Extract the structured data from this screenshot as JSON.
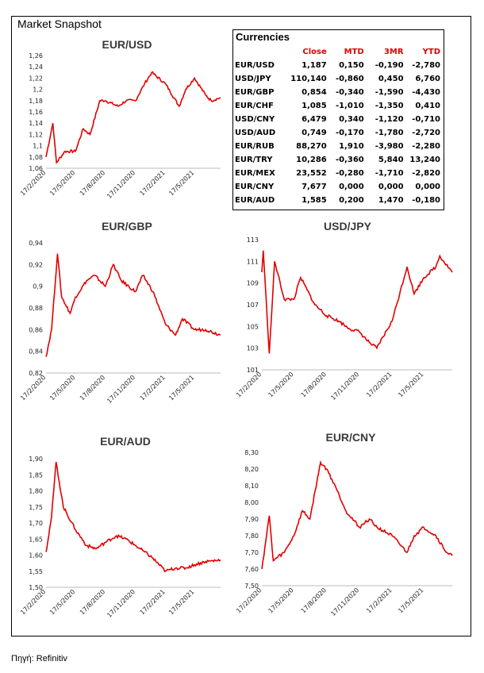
{
  "page_title": "Market Snapshot",
  "source": "Πηγή: Refinitiv",
  "currencies": {
    "title": "Currencies",
    "columns": [
      "Close",
      "MTD",
      "3MR",
      "YTD"
    ],
    "rows": [
      {
        "pair": "EUR/USD",
        "close": "1,187",
        "mtd": "0,150",
        "r3m": "-0,190",
        "ytd": "-2,780"
      },
      {
        "pair": "USD/JPY",
        "close": "110,140",
        "mtd": "-0,860",
        "r3m": "0,450",
        "ytd": "6,760"
      },
      {
        "pair": "EUR/GBP",
        "close": "0,854",
        "mtd": "-0,340",
        "r3m": "-1,590",
        "ytd": "-4,430"
      },
      {
        "pair": "EUR/CHF",
        "close": "1,085",
        "mtd": "-1,010",
        "r3m": "-1,350",
        "ytd": "0,410"
      },
      {
        "pair": "USD/CNY",
        "close": "6,479",
        "mtd": "0,340",
        "r3m": "-1,120",
        "ytd": "-0,710"
      },
      {
        "pair": "USD/AUD",
        "close": "0,749",
        "mtd": "-0,170",
        "r3m": "-1,780",
        "ytd": "-2,720"
      },
      {
        "pair": "EUR/RUB",
        "close": "88,270",
        "mtd": "1,910",
        "r3m": "-3,980",
        "ytd": "-2,280"
      },
      {
        "pair": "EUR/TRY",
        "close": "10,286",
        "mtd": "-0,360",
        "r3m": "5,840",
        "ytd": "13,240"
      },
      {
        "pair": "EUR/MEX",
        "close": "23,552",
        "mtd": "-0,280",
        "r3m": "-1,710",
        "ytd": "-2,820"
      },
      {
        "pair": "EUR/CNY",
        "close": "7,677",
        "mtd": "0,000",
        "r3m": "0,000",
        "ytd": "0,000"
      },
      {
        "pair": "EUR/AUD",
        "close": "1,585",
        "mtd": "0,200",
        "r3m": "1,470",
        "ytd": "-0,180"
      }
    ]
  },
  "chart_data": [
    {
      "id": "eurusd",
      "type": "line",
      "title": "EUR/USD",
      "color": "#e00000",
      "x_ticks": [
        "17/2/2020",
        "17/5/2020",
        "17/8/2020",
        "17/11/2020",
        "17/2/2021",
        "17/5/2021"
      ],
      "y_ticks": [
        "1,06",
        "1,08",
        "1,1",
        "1,12",
        "1,14",
        "1,16",
        "1,18",
        "1,2",
        "1,22",
        "1,24",
        "1,26"
      ],
      "ylim": [
        1.06,
        1.26
      ],
      "x": [
        "2020-02-17",
        "2020-03-09",
        "2020-03-20",
        "2020-04-15",
        "2020-05-17",
        "2020-06-10",
        "2020-07-01",
        "2020-07-31",
        "2020-08-17",
        "2020-09-25",
        "2020-10-20",
        "2020-11-17",
        "2020-12-15",
        "2021-01-06",
        "2021-02-17",
        "2021-03-31",
        "2021-04-20",
        "2021-05-17",
        "2021-06-20",
        "2021-07-07",
        "2021-08-05"
      ],
      "y": [
        1.08,
        1.14,
        1.07,
        1.09,
        1.09,
        1.13,
        1.12,
        1.18,
        1.18,
        1.17,
        1.18,
        1.18,
        1.21,
        1.23,
        1.21,
        1.17,
        1.2,
        1.22,
        1.19,
        1.18,
        1.185
      ]
    },
    {
      "id": "eurgbp",
      "type": "line",
      "title": "EUR/GBP",
      "color": "#e00000",
      "x_ticks": [
        "17/2/2020",
        "17/5/2020",
        "17/8/2020",
        "17/11/2020",
        "17/2/2021",
        "17/5/2021"
      ],
      "y_ticks": [
        "0,82",
        "0,84",
        "0,86",
        "0,88",
        "0,9",
        "0,92",
        "0,94"
      ],
      "ylim": [
        0.82,
        0.94
      ],
      "x": [
        "2020-02-17",
        "2020-03-05",
        "2020-03-23",
        "2020-04-05",
        "2020-05-01",
        "2020-05-17",
        "2020-06-20",
        "2020-07-15",
        "2020-08-17",
        "2020-09-10",
        "2020-10-05",
        "2020-11-17",
        "2020-12-10",
        "2021-01-10",
        "2021-02-17",
        "2021-03-20",
        "2021-04-10",
        "2021-05-17",
        "2021-06-20",
        "2021-08-05"
      ],
      "y": [
        0.835,
        0.86,
        0.93,
        0.89,
        0.875,
        0.89,
        0.905,
        0.91,
        0.9,
        0.92,
        0.905,
        0.895,
        0.91,
        0.895,
        0.865,
        0.855,
        0.87,
        0.86,
        0.86,
        0.855
      ]
    },
    {
      "id": "usdjpy",
      "type": "line",
      "title": "USD/JPY",
      "color": "#e00000",
      "x_ticks": [
        "17/2/2020",
        "17/5/2020",
        "17/8/2020",
        "17/11/2020",
        "17/2/2021",
        "17/5/2021"
      ],
      "y_ticks": [
        "101",
        "103",
        "105",
        "107",
        "109",
        "111",
        "113"
      ],
      "ylim": [
        101,
        113
      ],
      "x": [
        "2020-02-17",
        "2020-02-21",
        "2020-03-09",
        "2020-03-24",
        "2020-04-20",
        "2020-05-17",
        "2020-06-05",
        "2020-07-15",
        "2020-08-17",
        "2020-09-20",
        "2020-10-20",
        "2020-11-17",
        "2020-12-15",
        "2021-01-05",
        "2021-02-17",
        "2021-03-31",
        "2021-04-20",
        "2021-05-17",
        "2021-06-20",
        "2021-07-01",
        "2021-08-05"
      ],
      "y": [
        110,
        112,
        102.5,
        111,
        107.5,
        107.5,
        109.5,
        107,
        106,
        105.5,
        104.8,
        104.5,
        103.5,
        103,
        105.5,
        110.5,
        108,
        109.5,
        110.5,
        111.5,
        110
      ]
    },
    {
      "id": "euraud",
      "type": "line",
      "title": "EUR/AUD",
      "color": "#e00000",
      "x_ticks": [
        "17/2/2020",
        "17/5/2020",
        "17/8/2020",
        "17/11/2020",
        "17/2/2021",
        "17/5/2021"
      ],
      "y_ticks": [
        "1,50",
        "1,55",
        "1,60",
        "1,65",
        "1,70",
        "1,75",
        "1,80",
        "1,85",
        "1,90"
      ],
      "ylim": [
        1.5,
        1.9
      ],
      "x": [
        "2020-02-17",
        "2020-03-05",
        "2020-03-19",
        "2020-04-10",
        "2020-05-17",
        "2020-06-20",
        "2020-07-20",
        "2020-08-17",
        "2020-09-20",
        "2020-10-20",
        "2020-11-17",
        "2020-12-15",
        "2021-01-10",
        "2021-02-17",
        "2021-03-20",
        "2021-04-20",
        "2021-05-17",
        "2021-06-20",
        "2021-08-05"
      ],
      "y": [
        1.61,
        1.72,
        1.89,
        1.75,
        1.68,
        1.63,
        1.62,
        1.64,
        1.66,
        1.65,
        1.63,
        1.61,
        1.59,
        1.55,
        1.56,
        1.56,
        1.57,
        1.58,
        1.585
      ]
    },
    {
      "id": "eurcny",
      "type": "line",
      "title": "EUR/CNY",
      "color": "#e00000",
      "x_ticks": [
        "17/2/2020",
        "17/5/2020",
        "17/8/2020",
        "17/11/2020",
        "17/2/2021",
        "17/5/2021"
      ],
      "y_ticks": [
        "7,50",
        "7,60",
        "7,70",
        "7,80",
        "7,90",
        "8,00",
        "8,10",
        "8,20",
        "8,30"
      ],
      "ylim": [
        7.5,
        8.3
      ],
      "x": [
        "2020-02-17",
        "2020-03-09",
        "2020-03-20",
        "2020-04-20",
        "2020-05-17",
        "2020-06-10",
        "2020-07-01",
        "2020-07-31",
        "2020-08-17",
        "2020-09-10",
        "2020-10-10",
        "2020-11-17",
        "2020-12-15",
        "2021-01-06",
        "2021-02-17",
        "2021-03-31",
        "2021-04-20",
        "2021-05-17",
        "2021-06-20",
        "2021-07-20",
        "2021-08-05"
      ],
      "y": [
        7.6,
        7.92,
        7.65,
        7.7,
        7.8,
        7.95,
        7.9,
        8.24,
        8.2,
        8.1,
        7.95,
        7.85,
        7.9,
        7.85,
        7.8,
        7.7,
        7.8,
        7.85,
        7.8,
        7.7,
        7.68
      ]
    }
  ]
}
